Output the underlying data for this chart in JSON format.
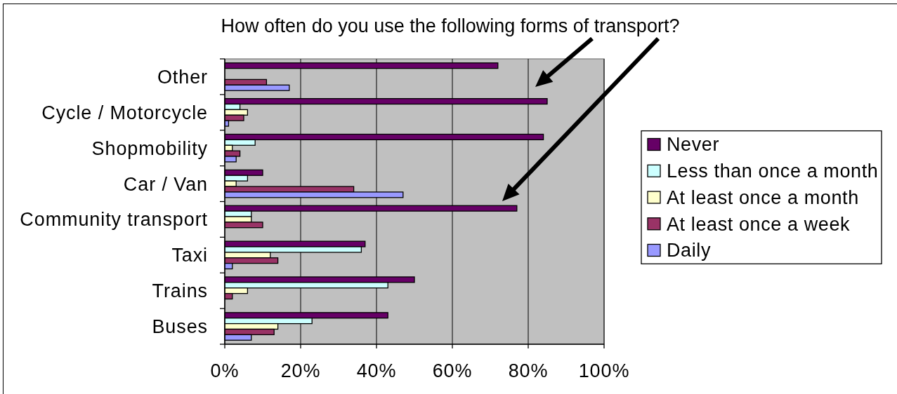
{
  "chart_data": {
    "type": "bar",
    "orientation": "horizontal",
    "title": "How often do you use the following forms of transport?",
    "categories": [
      "Other",
      "Cycle / Motorcycle",
      "Shopmobility",
      "Car / Van",
      "Community transport",
      "Taxi",
      "Trains",
      "Buses"
    ],
    "series": [
      {
        "name": "Never",
        "color": "#660066",
        "values": [
          72,
          85,
          84,
          10,
          77,
          37,
          50,
          43
        ]
      },
      {
        "name": "Less than once a month",
        "color": "#ccffff",
        "values": [
          null,
          4,
          8,
          6,
          7,
          36,
          43,
          23
        ]
      },
      {
        "name": "At least once a month",
        "color": "#ffffcc",
        "values": [
          null,
          6,
          2,
          3,
          7,
          12,
          6,
          14
        ]
      },
      {
        "name": "At least once a week",
        "color": "#993366",
        "values": [
          11,
          5,
          4,
          34,
          10,
          14,
          2,
          13
        ]
      },
      {
        "name": "Daily",
        "color": "#9999ff",
        "values": [
          17,
          1,
          3,
          47,
          null,
          2,
          null,
          7
        ]
      }
    ],
    "xlim": [
      0,
      100
    ],
    "xticks": [
      {
        "value": 0,
        "label": "0%"
      },
      {
        "value": 20,
        "label": "20%"
      },
      {
        "value": 40,
        "label": "40%"
      },
      {
        "value": 60,
        "label": "60%"
      },
      {
        "value": 80,
        "label": "80%"
      },
      {
        "value": 100,
        "label": "100%"
      }
    ],
    "grid": "x",
    "legend": "right"
  }
}
